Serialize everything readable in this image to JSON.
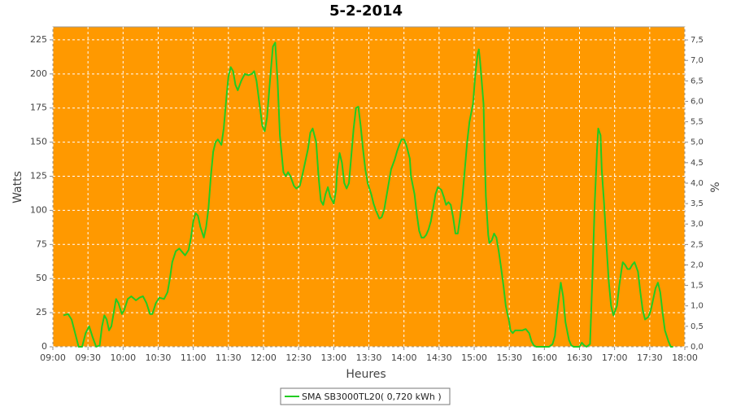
{
  "chart_data": {
    "type": "line",
    "title": "5-2-2014",
    "x_label": "Heures",
    "y_label": "Watts",
    "y2_label": "%",
    "x": [
      "09:09",
      "09:13",
      "09:16",
      "09:19",
      "09:22",
      "09:25",
      "09:28",
      "09:31",
      "09:34",
      "09:37",
      "09:40",
      "09:42",
      "09:44",
      "09:46",
      "09:48",
      "09:50",
      "09:53",
      "09:54",
      "09:56",
      "09:59",
      "10:01",
      "10:04",
      "10:07",
      "10:11",
      "10:14",
      "10:17",
      "10:20",
      "10:23",
      "10:25",
      "10:28",
      "10:31",
      "10:35",
      "10:38",
      "10:40",
      "10:42",
      "10:45",
      "10:48",
      "10:50",
      "10:53",
      "10:56",
      "10:58",
      "11:00",
      "11:02",
      "11:04",
      "11:06",
      "11:09",
      "11:11",
      "11:13",
      "11:15",
      "11:17",
      "11:19",
      "11:21",
      "11:24",
      "11:26",
      "11:28",
      "11:30",
      "11:32",
      "11:34",
      "11:36",
      "11:38",
      "11:41",
      "11:44",
      "11:47",
      "11:50",
      "11:52",
      "11:54",
      "11:57",
      "11:59",
      "12:01",
      "12:03",
      "12:06",
      "12:08",
      "12:10",
      "12:12",
      "12:14",
      "12:17",
      "12:19",
      "12:21",
      "12:23",
      "12:26",
      "12:28",
      "12:31",
      "12:33",
      "12:35",
      "12:38",
      "12:40",
      "12:42",
      "12:45",
      "12:47",
      "12:49",
      "12:51",
      "12:53",
      "12:55",
      "12:57",
      "13:00",
      "13:02",
      "13:03",
      "13:05",
      "13:07",
      "13:09",
      "13:11",
      "13:13",
      "13:15",
      "13:17",
      "13:19",
      "13:21",
      "13:23",
      "13:25",
      "13:27",
      "13:29",
      "13:32",
      "13:34",
      "13:36",
      "13:39",
      "13:41",
      "13:43",
      "13:45",
      "13:47",
      "13:49",
      "13:52",
      "13:54",
      "13:56",
      "13:58",
      "14:00",
      "14:02",
      "14:05",
      "14:06",
      "14:09",
      "14:11",
      "14:13",
      "14:15",
      "14:17",
      "14:19",
      "14:21",
      "14:23",
      "14:25",
      "14:27",
      "14:29",
      "14:32",
      "14:34",
      "14:36",
      "14:38",
      "14:40",
      "14:42",
      "14:44",
      "14:46",
      "14:48",
      "14:50",
      "14:52",
      "14:54",
      "14:56",
      "14:59",
      "15:01",
      "15:03",
      "15:04",
      "15:05",
      "15:08",
      "15:09",
      "15:10",
      "15:12",
      "15:13",
      "15:15",
      "15:17",
      "15:19",
      "15:21",
      "15:23",
      "15:25",
      "15:27",
      "15:30",
      "15:31",
      "15:33",
      "15:35",
      "15:38",
      "15:41",
      "15:44",
      "15:47",
      "15:49",
      "15:51",
      "15:53",
      "15:56",
      "15:58",
      "16:01",
      "16:04",
      "16:07",
      "16:09",
      "16:11",
      "16:13",
      "16:14",
      "16:16",
      "16:18",
      "16:21",
      "16:23",
      "16:25",
      "16:28",
      "16:30",
      "16:32",
      "16:34",
      "16:36",
      "16:39",
      "16:41",
      "16:43",
      "16:45",
      "16:46",
      "16:48",
      "16:49",
      "16:51",
      "16:53",
      "16:55",
      "16:57",
      "16:59",
      "17:02",
      "17:04",
      "17:06",
      "17:07",
      "17:09",
      "17:11",
      "17:13",
      "17:15",
      "17:17",
      "17:20",
      "17:22",
      "17:24",
      "17:26",
      "17:29",
      "17:31",
      "17:33",
      "17:35",
      "17:37",
      "17:39",
      "17:41",
      "17:43",
      "17:46",
      "17:48",
      "17:50"
    ],
    "series": [
      {
        "name": "SMA SB3000TL20( 0,720 kWh )",
        "color": "#22cc22",
        "values": [
          23,
          24,
          20,
          10,
          0,
          0,
          10,
          15,
          7,
          0,
          1,
          15,
          23,
          20,
          12,
          15,
          30,
          35,
          32,
          24,
          27,
          35,
          37,
          34,
          36,
          37,
          32,
          24,
          24,
          32,
          36,
          35,
          40,
          50,
          62,
          70,
          72,
          70,
          67,
          71,
          80,
          92,
          98,
          96,
          88,
          80,
          88,
          102,
          125,
          143,
          150,
          152,
          148,
          160,
          180,
          198,
          205,
          202,
          192,
          188,
          195,
          200,
          199,
          200,
          202,
          195,
          175,
          162,
          158,
          168,
          200,
          220,
          223,
          195,
          155,
          128,
          125,
          128,
          125,
          118,
          116,
          118,
          125,
          133,
          145,
          157,
          160,
          150,
          125,
          107,
          104,
          112,
          117,
          110,
          105,
          115,
          130,
          142,
          135,
          120,
          116,
          120,
          140,
          160,
          175,
          176,
          162,
          145,
          130,
          120,
          112,
          105,
          100,
          94,
          95,
          100,
          110,
          120,
          130,
          137,
          143,
          148,
          152,
          152,
          148,
          138,
          125,
          112,
          97,
          85,
          80,
          80,
          82,
          86,
          92,
          102,
          112,
          117,
          115,
          110,
          104,
          106,
          104,
          95,
          83,
          83,
          95,
          110,
          130,
          150,
          165,
          178,
          200,
          215,
          218,
          210,
          178,
          140,
          110,
          82,
          76,
          78,
          83,
          80,
          70,
          58,
          45,
          30,
          18,
          12,
          10,
          12,
          12,
          12,
          13,
          10,
          4,
          1,
          0,
          0,
          0,
          0,
          0,
          2,
          8,
          25,
          40,
          47,
          37,
          18,
          5,
          1,
          0,
          0,
          0,
          3,
          1,
          0,
          2,
          50,
          105,
          145,
          160,
          155,
          130,
          105,
          75,
          48,
          30,
          23,
          30,
          45,
          57,
          62,
          60,
          57,
          57,
          60,
          62,
          55,
          40,
          27,
          20,
          22,
          27,
          35,
          43,
          47,
          40,
          25,
          12,
          4,
          0,
          0
        ]
      }
    ],
    "xlim": [
      "09:00",
      "18:00"
    ],
    "xticks": [
      "09:00",
      "09:30",
      "10:00",
      "10:30",
      "11:00",
      "11:30",
      "12:00",
      "12:30",
      "13:00",
      "13:30",
      "14:00",
      "14:30",
      "15:00",
      "15:30",
      "16:00",
      "16:30",
      "17:00",
      "17:30",
      "18:00"
    ],
    "ylim": [
      0,
      234.5
    ],
    "yticks": [
      0,
      25,
      50,
      75,
      100,
      125,
      150,
      175,
      200,
      225
    ],
    "y2lim": [
      0,
      7.82
    ],
    "y2ticks": [
      {
        "value": 0,
        "label": "0,0"
      },
      {
        "value": 0.5,
        "label": "0,5"
      },
      {
        "value": 1,
        "label": "1,0"
      },
      {
        "value": 1.5,
        "label": "1,5"
      },
      {
        "value": 2,
        "label": "2,0"
      },
      {
        "value": 2.5,
        "label": "2,5"
      },
      {
        "value": 3,
        "label": "3,0"
      },
      {
        "value": 3.5,
        "label": "3,5"
      },
      {
        "value": 4,
        "label": "4,0"
      },
      {
        "value": 4.5,
        "label": "4,5"
      },
      {
        "value": 5,
        "label": "5,0"
      },
      {
        "value": 5.5,
        "label": "5,5"
      },
      {
        "value": 6,
        "label": "6,0"
      },
      {
        "value": 6.5,
        "label": "6,5"
      },
      {
        "value": 7,
        "label": "7,0"
      },
      {
        "value": 7.5,
        "label": "7,5"
      }
    ],
    "grid": true,
    "plot_background": "#ff9900",
    "legend": "bottom"
  }
}
